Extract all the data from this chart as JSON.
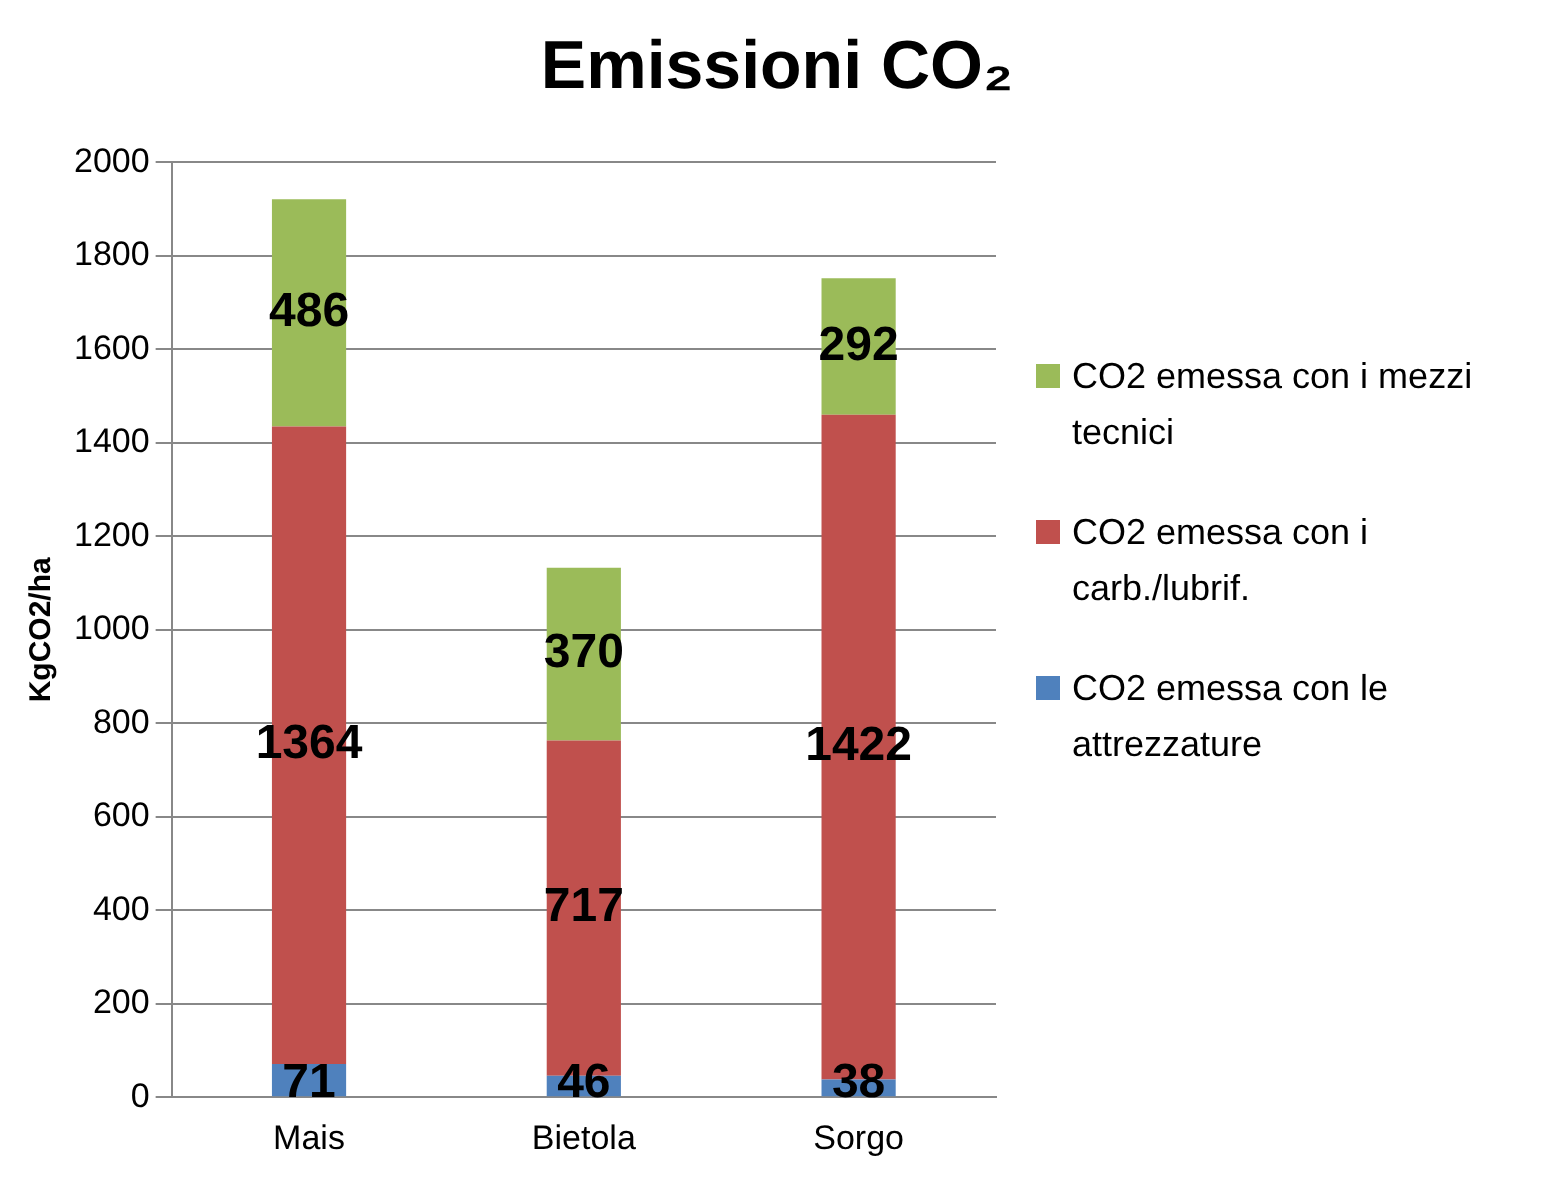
{
  "chart_data": {
    "type": "bar",
    "title": "Emissioni CO₂",
    "ylabel": "KgCO2/ha",
    "categories": [
      "Mais",
      "Bietola",
      "Sorgo"
    ],
    "stacked": true,
    "ylim": [
      0,
      2000
    ],
    "yticks": [
      0,
      200,
      400,
      600,
      800,
      1000,
      1200,
      1400,
      1600,
      1800,
      2000
    ],
    "grid": "y",
    "legend": "right",
    "data_labels": true,
    "series": [
      {
        "name": "CO2 emessa con le attrezzature",
        "color": "#4f81bd",
        "values": [
          71,
          46,
          38
        ]
      },
      {
        "name": "CO2 emessa con i carb./lubrif.",
        "color": "#c0504d",
        "values": [
          1364,
          717,
          1422
        ]
      },
      {
        "name": "CO2 emessa con i mezzi tecnici",
        "color": "#9bbb59",
        "values": [
          486,
          370,
          292
        ]
      }
    ]
  }
}
